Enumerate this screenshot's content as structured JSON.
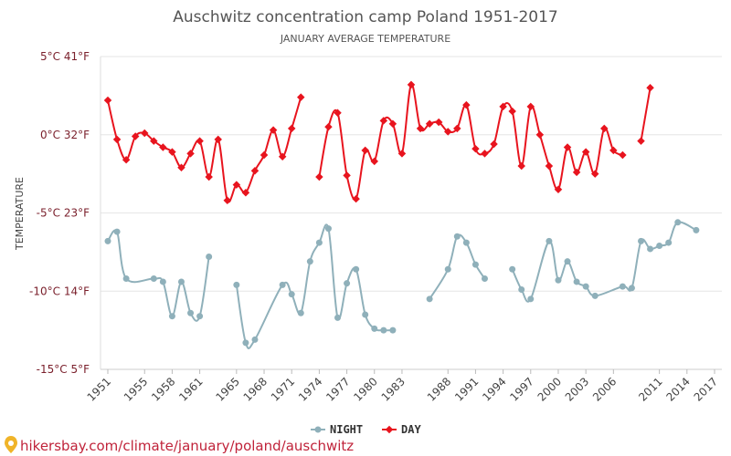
{
  "chart_data": {
    "type": "line",
    "title": "Auschwitz concentration camp Poland 1951-2017",
    "subtitle": "JANUARY AVERAGE TEMPERATURE",
    "ylabel": "TEMPERATURE",
    "ylim": [
      -15,
      5
    ],
    "y_ticks": [
      {
        "value": 5,
        "label": "5°C 41°F"
      },
      {
        "value": 0,
        "label": "0°C 32°F"
      },
      {
        "value": -5,
        "label": "-5°C 23°F"
      },
      {
        "value": -10,
        "label": "-10°C 14°F"
      },
      {
        "value": -15,
        "label": "-15°C 5°F"
      }
    ],
    "x_ticks": [
      1951,
      1955,
      1958,
      1961,
      1965,
      1968,
      1971,
      1974,
      1977,
      1980,
      1983,
      1988,
      1991,
      1994,
      1997,
      2000,
      2003,
      2006,
      2011,
      2014,
      2017
    ],
    "xlim": [
      1951,
      2017
    ],
    "grid": true,
    "legend_position": "bottom",
    "series": [
      {
        "name": "NIGHT",
        "color": "#8fb0ba",
        "x": [
          1951,
          1952,
          1953,
          1955,
          1956,
          1957,
          1958,
          1959,
          1960,
          1961,
          1962,
          1964,
          1965,
          1966,
          1969,
          1970,
          1971,
          1972,
          1973,
          1974,
          1975,
          1976,
          1977,
          1978,
          1979,
          1980,
          1981,
          1982,
          1985,
          1987,
          1988,
          1989,
          1990,
          1991,
          1992,
          1995,
          1996,
          1997,
          1999,
          2000,
          2001,
          2002,
          2003,
          2004,
          2007,
          2008,
          2009,
          2010,
          2011,
          2012,
          2013,
          2014,
          2015
        ],
        "values": [
          -6.8,
          -6.2,
          -9.2,
          -9.2,
          -9.4,
          -11.6,
          -9.4,
          -11.4,
          -11.6,
          -7.8,
          null,
          -9.6,
          -13.3,
          -13.1,
          -9.6,
          -10.2,
          -11.4,
          -8.1,
          -6.9,
          -6.0,
          -11.7,
          -9.5,
          -8.6,
          -11.5,
          -12.4,
          -12.5,
          -12.5,
          null,
          -10.5,
          -8.6,
          -6.5,
          -6.9,
          -8.3,
          -9.2,
          null,
          -8.6,
          -9.9,
          -10.5,
          -6.8,
          -9.3,
          -8.1,
          -9.4,
          -9.7,
          -10.3,
          -9.7,
          -9.8,
          -6.8,
          -7.3,
          -7.1,
          -6.9,
          -5.6,
          -6.1,
          null
        ],
        "years_actual": [
          1951,
          1952,
          1953,
          1956,
          1957,
          1958,
          1959,
          1960,
          1961,
          1962,
          1963,
          1965,
          1966,
          1967,
          1970,
          1971,
          1972,
          1973,
          1974,
          1975,
          1976,
          1977,
          1978,
          1979,
          1980,
          1981,
          1982,
          1983,
          1986,
          1988,
          1989,
          1990,
          1991,
          1992,
          1993,
          1995,
          1996,
          1997,
          1999,
          2000,
          2001,
          2002,
          2003,
          2004,
          2007,
          2008,
          2009,
          2010,
          2011,
          2012,
          2013,
          2015,
          2016
        ]
      },
      {
        "name": "DAY",
        "color": "#e8141e",
        "x": [
          1951,
          1952,
          1953,
          1954,
          1955,
          1956,
          1957,
          1958,
          1959,
          1960,
          1961,
          1962,
          1963,
          1964,
          1965,
          1966,
          1967,
          1968,
          1969,
          1970,
          1971,
          1972,
          1973,
          1975,
          1976,
          1977,
          1978,
          1979,
          1980,
          1981,
          1982,
          1983,
          1984,
          1985,
          1986,
          1987,
          1988,
          1989,
          1990,
          1991,
          1992,
          1993,
          1994,
          1995,
          1996,
          1997,
          1998,
          1999,
          2000,
          2001,
          2002,
          2003,
          2004,
          2005,
          2006,
          2007,
          2008,
          2009,
          2010,
          2012,
          2013,
          2014
        ],
        "values": [
          2.2,
          -0.3,
          -1.6,
          -0.1,
          0.1,
          -0.4,
          -0.8,
          -1.1,
          -2.1,
          -1.2,
          -0.4,
          -2.7,
          -0.3,
          -4.2,
          -3.2,
          -3.7,
          -2.3,
          -1.3,
          0.3,
          -1.4,
          0.4,
          2.4,
          null,
          -2.7,
          0.5,
          1.4,
          -2.6,
          -4.1,
          -1.0,
          -1.7,
          0.9,
          0.7,
          -1.2,
          3.2,
          0.4,
          0.7,
          0.8,
          0.2,
          0.4,
          1.9,
          -0.9,
          -1.2,
          -0.6,
          1.8,
          1.5,
          -2.0,
          1.8,
          0.0,
          -2.0,
          -3.5,
          -0.8,
          -2.4,
          -1.1,
          -2.5,
          0.4,
          -1.0,
          -1.3,
          null,
          -0.4,
          3.0,
          null,
          null
        ],
        "years_actual": [
          1951,
          1952,
          1953,
          1954,
          1955,
          1956,
          1957,
          1958,
          1959,
          1960,
          1961,
          1962,
          1963,
          1964,
          1965,
          1966,
          1967,
          1968,
          1969,
          1970,
          1971,
          1972,
          1973,
          1974,
          1975,
          1976,
          1977,
          1978,
          1979,
          1980,
          1981,
          1982,
          1983,
          1984,
          1985,
          1986,
          1987,
          1988,
          1989,
          1990,
          1991,
          1992,
          1993,
          1994,
          1995,
          1996,
          1997,
          1998,
          1999,
          2000,
          2001,
          2002,
          2003,
          2004,
          2005,
          2006,
          2007,
          2008,
          2009,
          2010,
          2011,
          2012
        ]
      }
    ]
  },
  "source_text": "hikersbay.com/climate/january/poland/auschwitz"
}
